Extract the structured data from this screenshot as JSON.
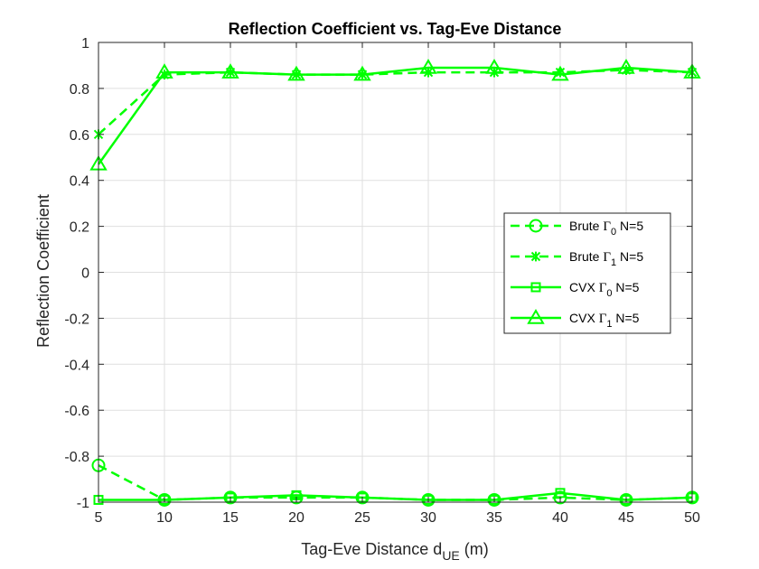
{
  "chart_data": {
    "type": "line",
    "title": "Reflection Coefficient vs. Tag-Eve Distance",
    "xlabel_main": "Tag-Eve Distance d",
    "xlabel_sub": "UE",
    "xlabel_tail": " (m)",
    "ylabel": "Reflection Coefficient",
    "xlim": [
      5,
      50
    ],
    "ylim": [
      -1,
      1
    ],
    "xticks": [
      5,
      10,
      15,
      20,
      25,
      30,
      35,
      40,
      45,
      50
    ],
    "yticks": [
      -1,
      -0.8,
      -0.6,
      -0.4,
      -0.2,
      0,
      0.2,
      0.4,
      0.6,
      0.8,
      1
    ],
    "grid": true,
    "legend_position": "right",
    "color": "#00ff00",
    "x": [
      5,
      10,
      15,
      20,
      25,
      30,
      35,
      40,
      45,
      50
    ],
    "series": [
      {
        "name": "Brute Γ0 N=5",
        "legend": {
          "pre": "Brute ",
          "greek": "Γ",
          "sub": "0",
          "post": " N=5"
        },
        "line": "dashed",
        "marker": "circle",
        "values": [
          -0.84,
          -0.99,
          -0.98,
          -0.98,
          -0.98,
          -0.99,
          -0.99,
          -0.98,
          -0.99,
          -0.98
        ]
      },
      {
        "name": "Brute Γ1 N=5",
        "legend": {
          "pre": "Brute ",
          "greek": "Γ",
          "sub": "1",
          "post": " N=5"
        },
        "line": "dashed",
        "marker": "asterisk",
        "values": [
          0.6,
          0.86,
          0.87,
          0.86,
          0.86,
          0.87,
          0.87,
          0.87,
          0.88,
          0.87
        ]
      },
      {
        "name": "CVX Γ0 N=5",
        "legend": {
          "pre": "CVX ",
          "greek": "Γ",
          "sub": "0",
          "post": " N=5"
        },
        "line": "solid",
        "marker": "square",
        "values": [
          -0.99,
          -0.99,
          -0.98,
          -0.97,
          -0.98,
          -0.99,
          -0.99,
          -0.96,
          -0.99,
          -0.98
        ]
      },
      {
        "name": "CVX Γ1 N=5",
        "legend": {
          "pre": "CVX ",
          "greek": "Γ",
          "sub": "1",
          "post": " N=5"
        },
        "line": "solid",
        "marker": "triangle",
        "values": [
          0.47,
          0.87,
          0.87,
          0.86,
          0.86,
          0.89,
          0.89,
          0.86,
          0.89,
          0.87
        ]
      }
    ]
  }
}
